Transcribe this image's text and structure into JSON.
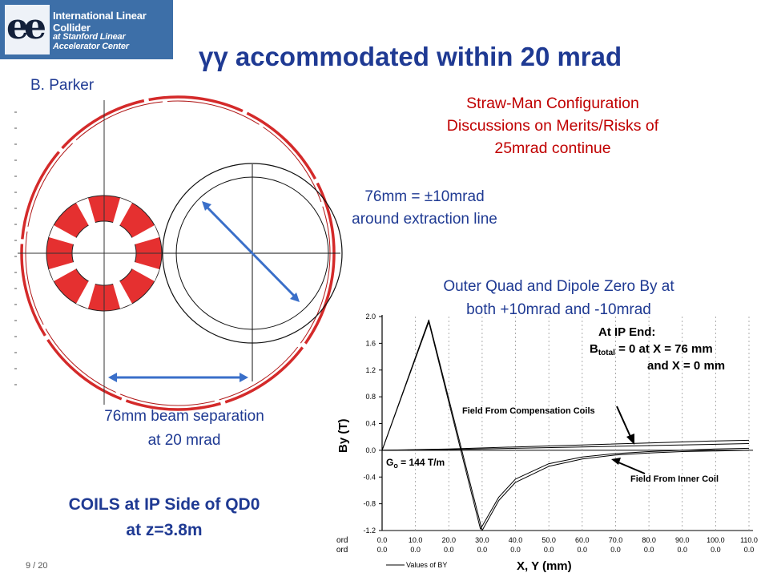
{
  "logo": {
    "line1": "International Linear Collider",
    "line2": "at Stanford Linear Accelerator Center"
  },
  "slide": {
    "title": "γγ accommodated within 20 mrad",
    "author": "B. Parker",
    "strawman": [
      "Straw-Man Configuration",
      "Discussions on Merits/Risks of",
      "25mrad continue"
    ],
    "extraction": [
      "76mm = ±10mrad",
      "around extraction line"
    ],
    "outer_quad": [
      "Outer Quad and Dipole Zero By at",
      "both +10mrad and -10mrad"
    ],
    "beam_sep": [
      "76mm beam separation",
      "at 20 mrad"
    ],
    "coils": [
      "COILS at IP Side of QD0",
      "at z=3.8m"
    ],
    "page": "9 / 20"
  },
  "colors": {
    "title_blue": "#1f3a93",
    "red": "#c00000",
    "arrow_blue": "#3a6fc9",
    "coil_red": "#e02a2a"
  },
  "chart_data": {
    "type": "line",
    "ylabel": "By (T)",
    "xlabel": "X, Y (mm)",
    "ylim": [
      -1.2,
      2.0
    ],
    "xlim": [
      0,
      110
    ],
    "yticks": [
      "2.0",
      "1.6",
      "1.2",
      "0.8",
      "0.4",
      "0.0",
      "-0.4",
      "-0.8",
      "-1.2"
    ],
    "ytick_values": [
      2.0,
      1.6,
      1.2,
      0.8,
      0.4,
      0.0,
      -0.4,
      -0.8,
      -1.2
    ],
    "x_row_label": "X coord",
    "y_row_label": "Y coord",
    "x_coords": [
      "0.0",
      "10.0",
      "20.0",
      "30.0",
      "40.0",
      "50.0",
      "60.0",
      "70.0",
      "80.0",
      "90.0",
      "100.0",
      "110.0"
    ],
    "y_coords": [
      "0.0",
      "0.0",
      "0.0",
      "0.0",
      "0.0",
      "0.0",
      "0.0",
      "0.0",
      "0.0",
      "0.0",
      "0.0",
      "0.0"
    ],
    "legend": "Values of BY",
    "annotations": {
      "ip_end_1": "At IP End:",
      "ip_end_2": "B",
      "ip_end_2_sub": "total",
      "ip_end_2_rest": " = 0 at X = 76 mm",
      "ip_end_3": "and X  =  0 mm",
      "comp_coils": "Field From Compensation Coils",
      "inner_coil": "Field From Inner Coil",
      "gradient": "G",
      "gradient_sub": "o",
      "gradient_rest": " = 144 T/m"
    },
    "series": [
      {
        "values": [
          [
            0,
            0.0
          ],
          [
            14,
            1.95
          ],
          [
            30,
            -1.2
          ],
          [
            35,
            -0.75
          ],
          [
            40,
            -0.48
          ],
          [
            50,
            -0.24
          ],
          [
            60,
            -0.13
          ],
          [
            70,
            -0.07
          ],
          [
            80,
            -0.04
          ],
          [
            90,
            -0.02
          ],
          [
            100,
            -0.01
          ],
          [
            110,
            0.0
          ]
        ]
      },
      {
        "values": [
          [
            0,
            0.0
          ],
          [
            14,
            1.92
          ],
          [
            29.5,
            -1.18
          ],
          [
            35,
            -0.7
          ],
          [
            40,
            -0.43
          ],
          [
            50,
            -0.2
          ],
          [
            60,
            -0.1
          ],
          [
            70,
            -0.05
          ],
          [
            80,
            -0.02
          ],
          [
            90,
            0.0
          ],
          [
            100,
            0.02
          ],
          [
            110,
            0.03
          ]
        ]
      },
      {
        "values": [
          [
            0,
            0.0
          ],
          [
            20,
            0.01
          ],
          [
            40,
            0.03
          ],
          [
            60,
            0.05
          ],
          [
            80,
            0.07
          ],
          [
            100,
            0.09
          ],
          [
            110,
            0.1
          ]
        ]
      },
      {
        "values": [
          [
            0,
            0.0
          ],
          [
            20,
            0.02
          ],
          [
            40,
            0.05
          ],
          [
            60,
            0.08
          ],
          [
            80,
            0.11
          ],
          [
            100,
            0.14
          ],
          [
            110,
            0.15
          ]
        ]
      }
    ]
  }
}
